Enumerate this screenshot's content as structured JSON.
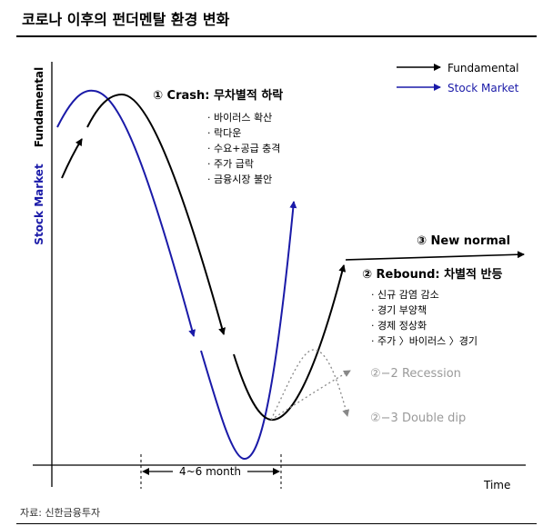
{
  "title": "코로나 이후의 펀더멘탈 환경 변화",
  "source": "자료: 신한금융투자",
  "colors": {
    "fundamental": "#000000",
    "stock_market": "#1a1aa8",
    "scenario": "#888888",
    "scenario_text": "#9a9a9a"
  },
  "axes": {
    "y_label_fundamental": "Fundamental",
    "y_label_stock": "Stock Market",
    "x_label": "Time",
    "duration_label": "4~6 month"
  },
  "legend": [
    {
      "name": "Fundamental",
      "color": "#000000"
    },
    {
      "name": "Stock Market",
      "color": "#1a1aa8"
    }
  ],
  "phases": {
    "crash": {
      "title": "① Crash: 무차별적 하락",
      "bullets": [
        "· 바이러스 확산",
        "· 락다운",
        "· 수요+공급 충격",
        "· 주가 급락",
        "· 금융시장 불안"
      ]
    },
    "new_normal": {
      "title": "③ New normal"
    },
    "rebound": {
      "title": "② Rebound: 차별적 반등",
      "bullets": [
        "· 신규 감염 감소",
        "· 경기 부양책",
        "· 경제 정상화",
        "· 주가 〉바이러스 〉경기"
      ]
    },
    "recession": {
      "title": "②−2 Recession"
    },
    "double_dip": {
      "title": "②−3 Double dip"
    }
  }
}
